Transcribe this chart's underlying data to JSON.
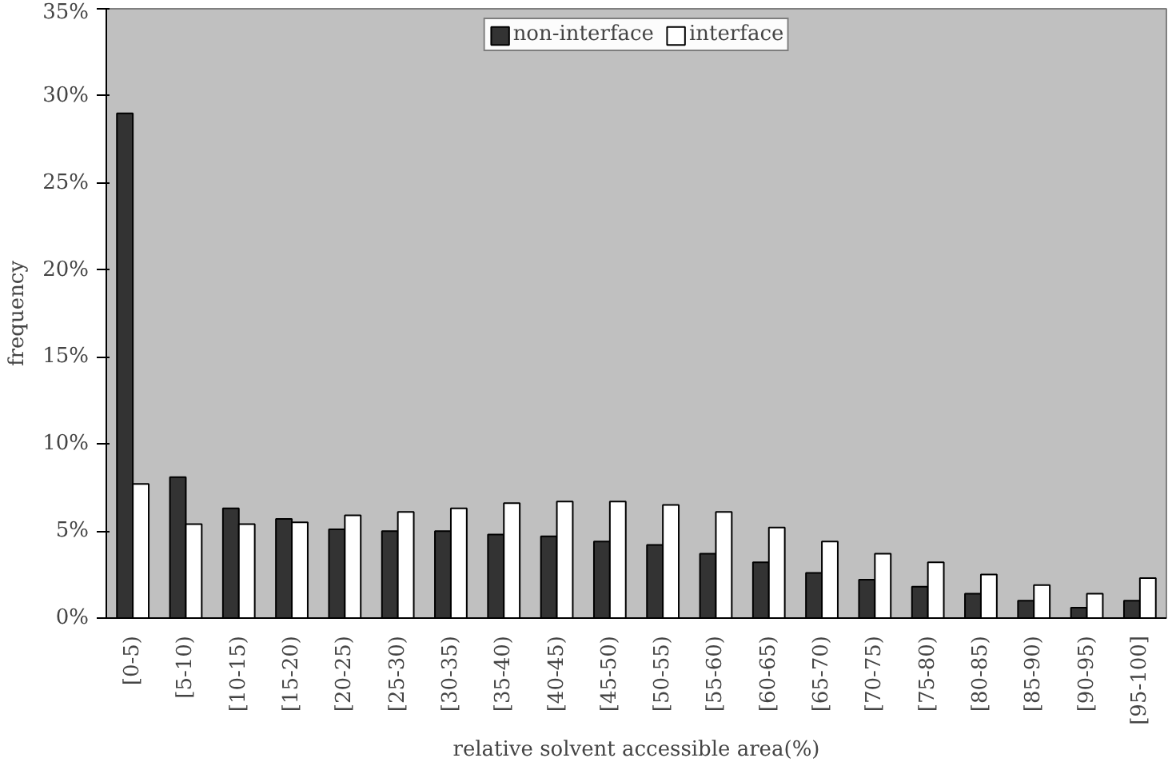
{
  "chart_data": {
    "type": "bar",
    "xlabel": "relative solvent accessible area(%)",
    "ylabel": "frequency",
    "categories": [
      "[0-5)",
      "[5-10)",
      "[10-15)",
      "[15-20)",
      "[20-25)",
      "[25-30)",
      "[30-35)",
      "[35-40)",
      "[40-45)",
      "[45-50)",
      "[50-55)",
      "[55-60)",
      "[60-65)",
      "[65-70)",
      "[70-75)",
      "[75-80)",
      "[80-85)",
      "[85-90)",
      "[90-95)",
      "[95-100]"
    ],
    "series": [
      {
        "name": "non-interface",
        "color": "#333333",
        "values": [
          29.0,
          8.1,
          6.3,
          5.7,
          5.1,
          5.0,
          5.0,
          4.8,
          4.7,
          4.4,
          4.2,
          3.7,
          3.2,
          2.6,
          2.2,
          1.8,
          1.4,
          1.0,
          0.6,
          1.0
        ]
      },
      {
        "name": "interface",
        "color": "#ffffff",
        "values": [
          7.7,
          5.4,
          5.4,
          5.5,
          5.9,
          6.1,
          6.3,
          6.6,
          6.7,
          6.7,
          6.5,
          6.1,
          5.2,
          4.4,
          3.7,
          3.2,
          2.5,
          1.9,
          1.4,
          2.3
        ]
      }
    ],
    "ylim": [
      0,
      35
    ],
    "yticks": [
      {
        "value": 0,
        "label": "0%"
      },
      {
        "value": 5,
        "label": "5%"
      },
      {
        "value": 10,
        "label": "10%"
      },
      {
        "value": 15,
        "label": "15%"
      },
      {
        "value": 20,
        "label": "20%"
      },
      {
        "value": 25,
        "label": "25%"
      },
      {
        "value": 30,
        "label": "30%"
      },
      {
        "value": 35,
        "label": "35%"
      }
    ],
    "legend": "top",
    "grid": false
  }
}
